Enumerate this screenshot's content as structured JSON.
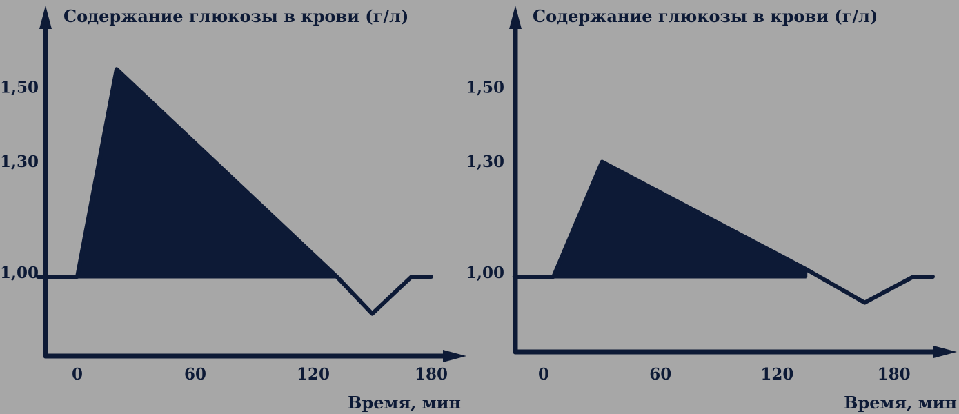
{
  "colors": {
    "background": "#a7a7a7",
    "ink": "#0d1a36"
  },
  "chart_data": [
    {
      "type": "line",
      "title": "Содержание глюкозы в крови (г/л)",
      "xlabel": "Время, мин",
      "ylabel": "",
      "x_ticks": [
        0,
        60,
        120,
        180
      ],
      "y_ticks": [
        {
          "value": 1.0,
          "label": "1,00"
        },
        {
          "value": 1.3,
          "label": "1,30"
        },
        {
          "value": 1.5,
          "label": "1,50"
        }
      ],
      "x": [
        -20,
        0,
        20,
        132,
        150,
        170,
        180
      ],
      "y": [
        1.0,
        1.0,
        1.56,
        1.0,
        0.9,
        1.0,
        1.0
      ],
      "filled_region": {
        "from_x": 0,
        "to_x": 132,
        "baseline": 1.0
      },
      "grid": false
    },
    {
      "type": "line",
      "title": "Содержание глюкозы в крови (г/л)",
      "xlabel": "Время, мин",
      "ylabel": "",
      "x_ticks": [
        0,
        60,
        120,
        180
      ],
      "y_ticks": [
        {
          "value": 1.0,
          "label": "1,00"
        },
        {
          "value": 1.3,
          "label": "1,30"
        },
        {
          "value": 1.5,
          "label": "1,50"
        }
      ],
      "x": [
        -15,
        5,
        30,
        135,
        165,
        190,
        200
      ],
      "y": [
        1.0,
        1.0,
        1.31,
        1.02,
        0.93,
        1.0,
        1.0
      ],
      "filled_region": {
        "from_x": 5,
        "to_x": 135,
        "baseline": 1.0
      },
      "grid": false
    }
  ]
}
